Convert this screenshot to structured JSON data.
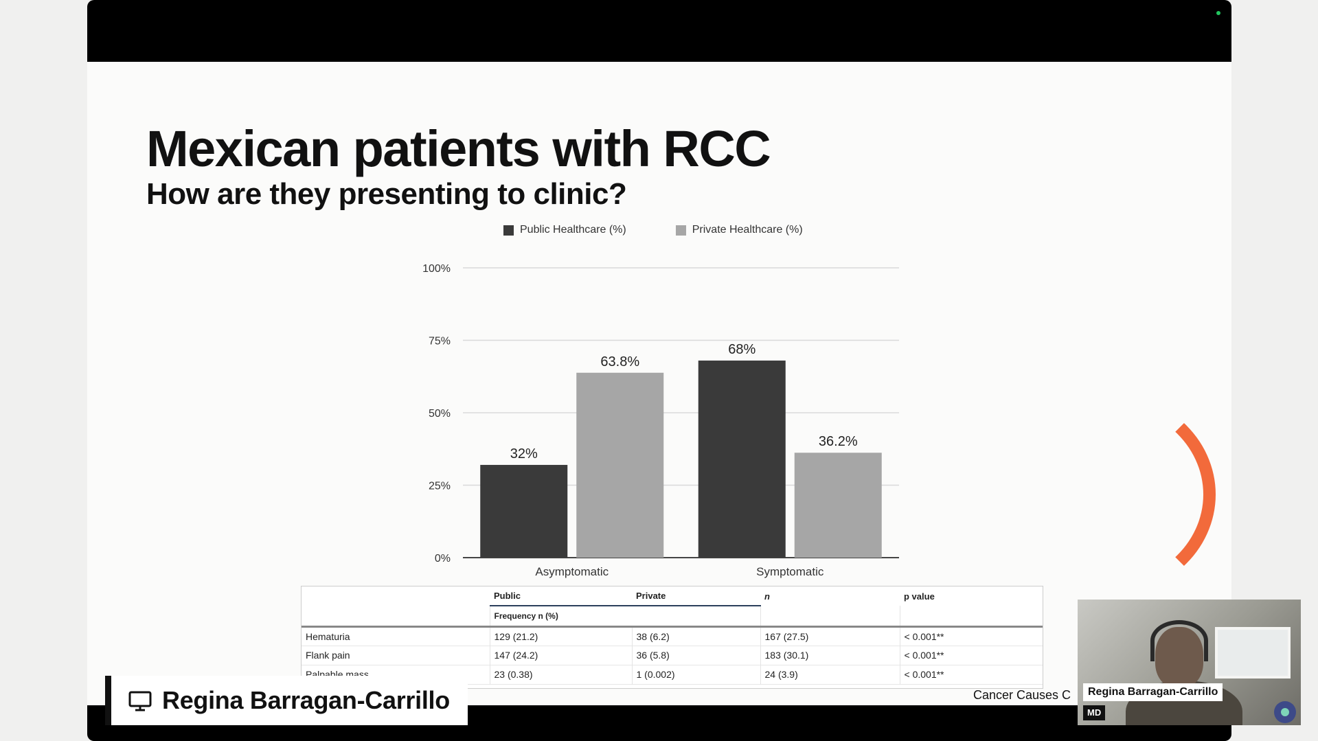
{
  "slide": {
    "title": "Mexican patients with RCC",
    "subtitle": "How are they presenting to clinic?",
    "citation": "Cancer Causes C"
  },
  "chart_data": {
    "type": "bar",
    "categories": [
      "Asymptomatic",
      "Symptomatic"
    ],
    "series": [
      {
        "name": "Public Healthcare (%)",
        "values": [
          32,
          68
        ],
        "labels": [
          "32%",
          "68%"
        ],
        "color": "#3a3a3a"
      },
      {
        "name": "Private Healthcare (%)",
        "values": [
          63.8,
          36.2
        ],
        "labels": [
          "63.8%",
          "36.2%"
        ],
        "color": "#a6a6a6"
      }
    ],
    "yticks": [
      "0%",
      "25%",
      "50%",
      "75%",
      "100%"
    ],
    "ylim": [
      0,
      100
    ],
    "grid": true,
    "legend": "top"
  },
  "table": {
    "columns": [
      "Public",
      "Private",
      "n",
      "p value"
    ],
    "subheader": "Frequency n (%)",
    "rows": [
      {
        "label": "Hematuria",
        "public": "129 (21.2)",
        "private": "38 (6.2)",
        "n": "167 (27.5)",
        "p": "< 0.001**"
      },
      {
        "label": "Flank pain",
        "public": "147 (24.2)",
        "private": "36 (5.8)",
        "n": "183 (30.1)",
        "p": "< 0.001**"
      },
      {
        "label": "Palpable mass",
        "public": "23 (0.38)",
        "private": "1 (0.002)",
        "n": "24 (3.9)",
        "p": "< 0.001**"
      }
    ]
  },
  "presenter": {
    "name": "Regina Barragan-Carrillo",
    "icon": "monitor-icon"
  },
  "video_tile": {
    "name": "Regina Barragan-Carrillo",
    "badge": "MD"
  },
  "colors": {
    "accent_arc": "#f26a3b",
    "stage_bg": "#000000"
  }
}
